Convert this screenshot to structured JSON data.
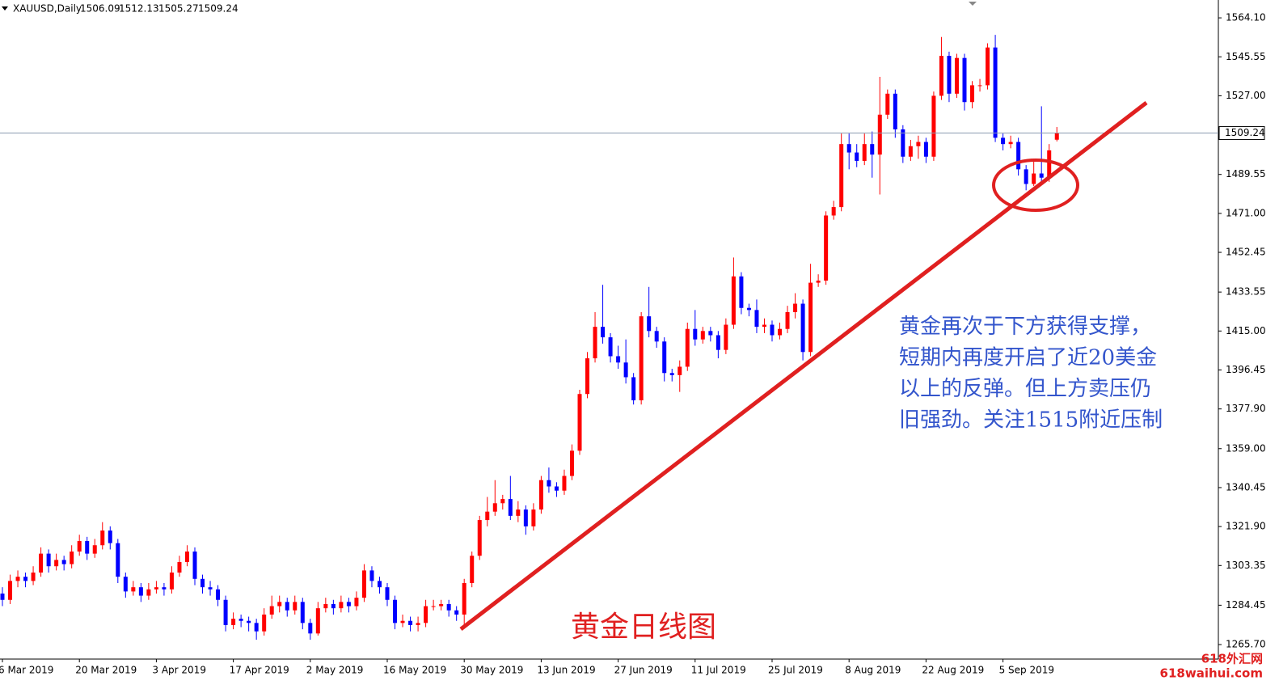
{
  "chart_data": {
    "type": "candlestick",
    "symbol": "XAUUSD,Daily",
    "title": "黄金日线图",
    "annotation": [
      "黄金再次于下方获得支撑，",
      "短期内再度开启了近20美金",
      "以上的反弹。但上方卖压仍",
      "旧强劲。关注1515附近压制"
    ],
    "watermark": [
      "618外汇网",
      "618waihui.com"
    ],
    "up_color": "#ff0000",
    "down_color": "#0000ff",
    "categories": [
      "6 Mar 2019",
      null,
      null,
      null,
      null,
      null,
      null,
      null,
      null,
      null,
      "20 Mar 2019",
      null,
      null,
      null,
      null,
      null,
      null,
      null,
      null,
      null,
      "3 Apr 2019",
      null,
      null,
      null,
      null,
      null,
      null,
      null,
      null,
      null,
      "17 Apr 2019",
      null,
      null,
      null,
      null,
      null,
      null,
      null,
      null,
      null,
      "2 May 2019",
      null,
      null,
      null,
      null,
      null,
      null,
      null,
      null,
      null,
      "16 May 2019",
      null,
      null,
      null,
      null,
      null,
      null,
      null,
      null,
      null,
      "30 May 2019",
      null,
      null,
      null,
      null,
      null,
      null,
      null,
      null,
      null,
      "13 Jun 2019",
      null,
      null,
      null,
      null,
      null,
      null,
      null,
      null,
      null,
      "27 Jun 2019",
      null,
      null,
      null,
      null,
      null,
      null,
      null,
      null,
      null,
      "11 Jul 2019",
      null,
      null,
      null,
      null,
      null,
      null,
      null,
      null,
      null,
      "25 Jul 2019",
      null,
      null,
      null,
      null,
      null,
      null,
      null,
      null,
      null,
      "8 Aug 2019",
      null,
      null,
      null,
      null,
      null,
      null,
      null,
      null,
      null,
      "22 Aug 2019",
      null,
      null,
      null,
      null,
      null,
      null,
      null,
      null,
      null,
      "5 Sep 2019",
      null,
      null,
      null,
      null,
      null,
      null,
      null
    ],
    "open": [
      1290,
      1287,
      1296,
      1298,
      1296,
      1300,
      1309,
      1303,
      1306,
      1304,
      1310,
      1315,
      1309,
      1313,
      1320,
      1314,
      1298,
      1291,
      1293,
      1289,
      1292,
      1293,
      1292,
      1300,
      1305,
      1310,
      1297,
      1293,
      1292,
      1287,
      1275,
      1278,
      1277,
      1276,
      1272,
      1280,
      1284,
      1286,
      1282,
      1286,
      1276,
      1271,
      1283,
      1285,
      1283,
      1286,
      1284,
      1288,
      1301,
      1296,
      1293,
      1287,
      1276,
      1277,
      1275,
      1276,
      1284,
      1284,
      1285,
      1282,
      1280,
      1295,
      1308,
      1325,
      1329,
      1333,
      1335,
      1327,
      1330,
      1322,
      1330,
      1344,
      1341,
      1339,
      1346,
      1358,
      1385,
      1402,
      1417,
      1412,
      1403,
      1400,
      1393,
      1382,
      1422,
      1415,
      1410,
      1395,
      1394,
      1398,
      1416,
      1411,
      1415,
      1413,
      1406,
      1418,
      1441,
      1426,
      1425,
      1417,
      1418,
      1413,
      1416,
      1424,
      1428,
      1405,
      1438,
      1439,
      1470,
      1474,
      1504,
      1500,
      1496,
      1504,
      1499,
      1518,
      1528,
      1511,
      1498,
      1503,
      1505,
      1498,
      1527,
      1546,
      1528,
      1545,
      1524,
      1532,
      1532,
      1550,
      1507,
      1504,
      1505,
      1492,
      1485,
      1490,
      1488,
      1506.09
    ],
    "high": [
      1293,
      1299,
      1301,
      1300,
      1303,
      1312,
      1311,
      1309,
      1308,
      1313,
      1318,
      1317,
      1316,
      1324,
      1322,
      1316,
      1300,
      1296,
      1295,
      1295,
      1296,
      1295,
      1303,
      1308,
      1313,
      1312,
      1299,
      1296,
      1294,
      1289,
      1281,
      1280,
      1279,
      1278,
      1283,
      1289,
      1289,
      1288,
      1289,
      1288,
      1278,
      1286,
      1288,
      1287,
      1289,
      1288,
      1291,
      1304,
      1303,
      1298,
      1295,
      1289,
      1280,
      1279,
      1279,
      1287,
      1287,
      1287,
      1287,
      1284,
      1297,
      1310,
      1327,
      1336,
      1344,
      1337,
      1346,
      1334,
      1332,
      1333,
      1346,
      1350,
      1343,
      1349,
      1361,
      1387,
      1405,
      1424,
      1437,
      1414,
      1408,
      1411,
      1395,
      1424,
      1436,
      1417,
      1412,
      1397,
      1401,
      1419,
      1425,
      1417,
      1417,
      1415,
      1421,
      1450,
      1443,
      1428,
      1430,
      1421,
      1420,
      1419,
      1427,
      1433,
      1430,
      1447,
      1442,
      1472,
      1477,
      1509,
      1509,
      1504,
      1509,
      1510,
      1536,
      1530,
      1530,
      1513,
      1506,
      1508,
      1507,
      1529,
      1555,
      1548,
      1547,
      1547,
      1534,
      1535,
      1552,
      1556,
      1509,
      1508,
      1507,
      1494,
      1497,
      1522,
      1504,
      1512.13
    ],
    "low": [
      1284,
      1285,
      1293,
      1293,
      1294,
      1298,
      1300,
      1301,
      1301,
      1302,
      1308,
      1306,
      1307,
      1311,
      1311,
      1295,
      1288,
      1289,
      1286,
      1287,
      1290,
      1289,
      1290,
      1298,
      1303,
      1294,
      1290,
      1289,
      1284,
      1272,
      1273,
      1274,
      1272,
      1268,
      1270,
      1278,
      1281,
      1279,
      1280,
      1273,
      1268,
      1270,
      1281,
      1280,
      1281,
      1281,
      1282,
      1286,
      1293,
      1290,
      1284,
      1273,
      1274,
      1272,
      1272,
      1274,
      1282,
      1282,
      1279,
      1277,
      1275,
      1293,
      1306,
      1322,
      1327,
      1330,
      1325,
      1324,
      1318,
      1320,
      1328,
      1338,
      1336,
      1337,
      1344,
      1356,
      1383,
      1400,
      1409,
      1400,
      1397,
      1390,
      1380,
      1380,
      1412,
      1407,
      1391,
      1391,
      1386,
      1396,
      1408,
      1409,
      1410,
      1402,
      1404,
      1416,
      1423,
      1422,
      1414,
      1414,
      1410,
      1411,
      1414,
      1421,
      1401,
      1403,
      1436,
      1437,
      1468,
      1472,
      1492,
      1493,
      1494,
      1488,
      1480,
      1516,
      1507,
      1495,
      1496,
      1497,
      1495,
      1496,
      1525,
      1524,
      1526,
      1520,
      1521,
      1529,
      1530,
      1505,
      1501,
      1502,
      1489,
      1482,
      1484,
      1485,
      1486,
      1505.27
    ],
    "close": [
      1287,
      1296,
      1298,
      1296,
      1300,
      1309,
      1303,
      1306,
      1304,
      1310,
      1315,
      1309,
      1313,
      1320,
      1314,
      1298,
      1291,
      1293,
      1289,
      1292,
      1293,
      1292,
      1300,
      1305,
      1310,
      1297,
      1293,
      1292,
      1287,
      1275,
      1278,
      1277,
      1276,
      1272,
      1280,
      1284,
      1286,
      1282,
      1286,
      1276,
      1271,
      1283,
      1285,
      1283,
      1286,
      1284,
      1288,
      1301,
      1296,
      1293,
      1287,
      1276,
      1277,
      1275,
      1276,
      1284,
      1284,
      1285,
      1282,
      1280,
      1295,
      1308,
      1325,
      1329,
      1333,
      1335,
      1327,
      1330,
      1322,
      1330,
      1344,
      1341,
      1339,
      1346,
      1358,
      1385,
      1402,
      1417,
      1412,
      1403,
      1400,
      1393,
      1382,
      1422,
      1415,
      1410,
      1395,
      1394,
      1398,
      1416,
      1411,
      1415,
      1413,
      1406,
      1418,
      1441,
      1426,
      1425,
      1417,
      1418,
      1413,
      1416,
      1424,
      1428,
      1405,
      1438,
      1439,
      1470,
      1474,
      1504,
      1500,
      1496,
      1504,
      1499,
      1518,
      1528,
      1511,
      1498,
      1503,
      1505,
      1498,
      1527,
      1546,
      1528,
      1545,
      1524,
      1532,
      1532,
      1550,
      1507,
      1504,
      1505,
      1492,
      1485,
      1490,
      1488,
      1501,
      1509.24
    ],
    "ylim": [
      1258.8,
      1572.6
    ],
    "yticks": [
      {
        "value": 1564.1,
        "label": "1564.10"
      },
      1545.55,
      {
        "value": 1527,
        "label": "1527.00"
      },
      1489.55,
      {
        "value": 1471,
        "label": "1471.00"
      },
      1452.45,
      1433.55,
      {
        "value": 1415,
        "label": "1415.00"
      },
      1396.45,
      {
        "value": 1377.9,
        "label": "1377.90"
      },
      {
        "value": 1359,
        "label": "1359.00"
      },
      1340.45,
      {
        "value": 1321.9,
        "label": "1321.90"
      },
      1303.35,
      1284.45,
      {
        "value": 1265.7,
        "label": "1265.70"
      }
    ]
  }
}
